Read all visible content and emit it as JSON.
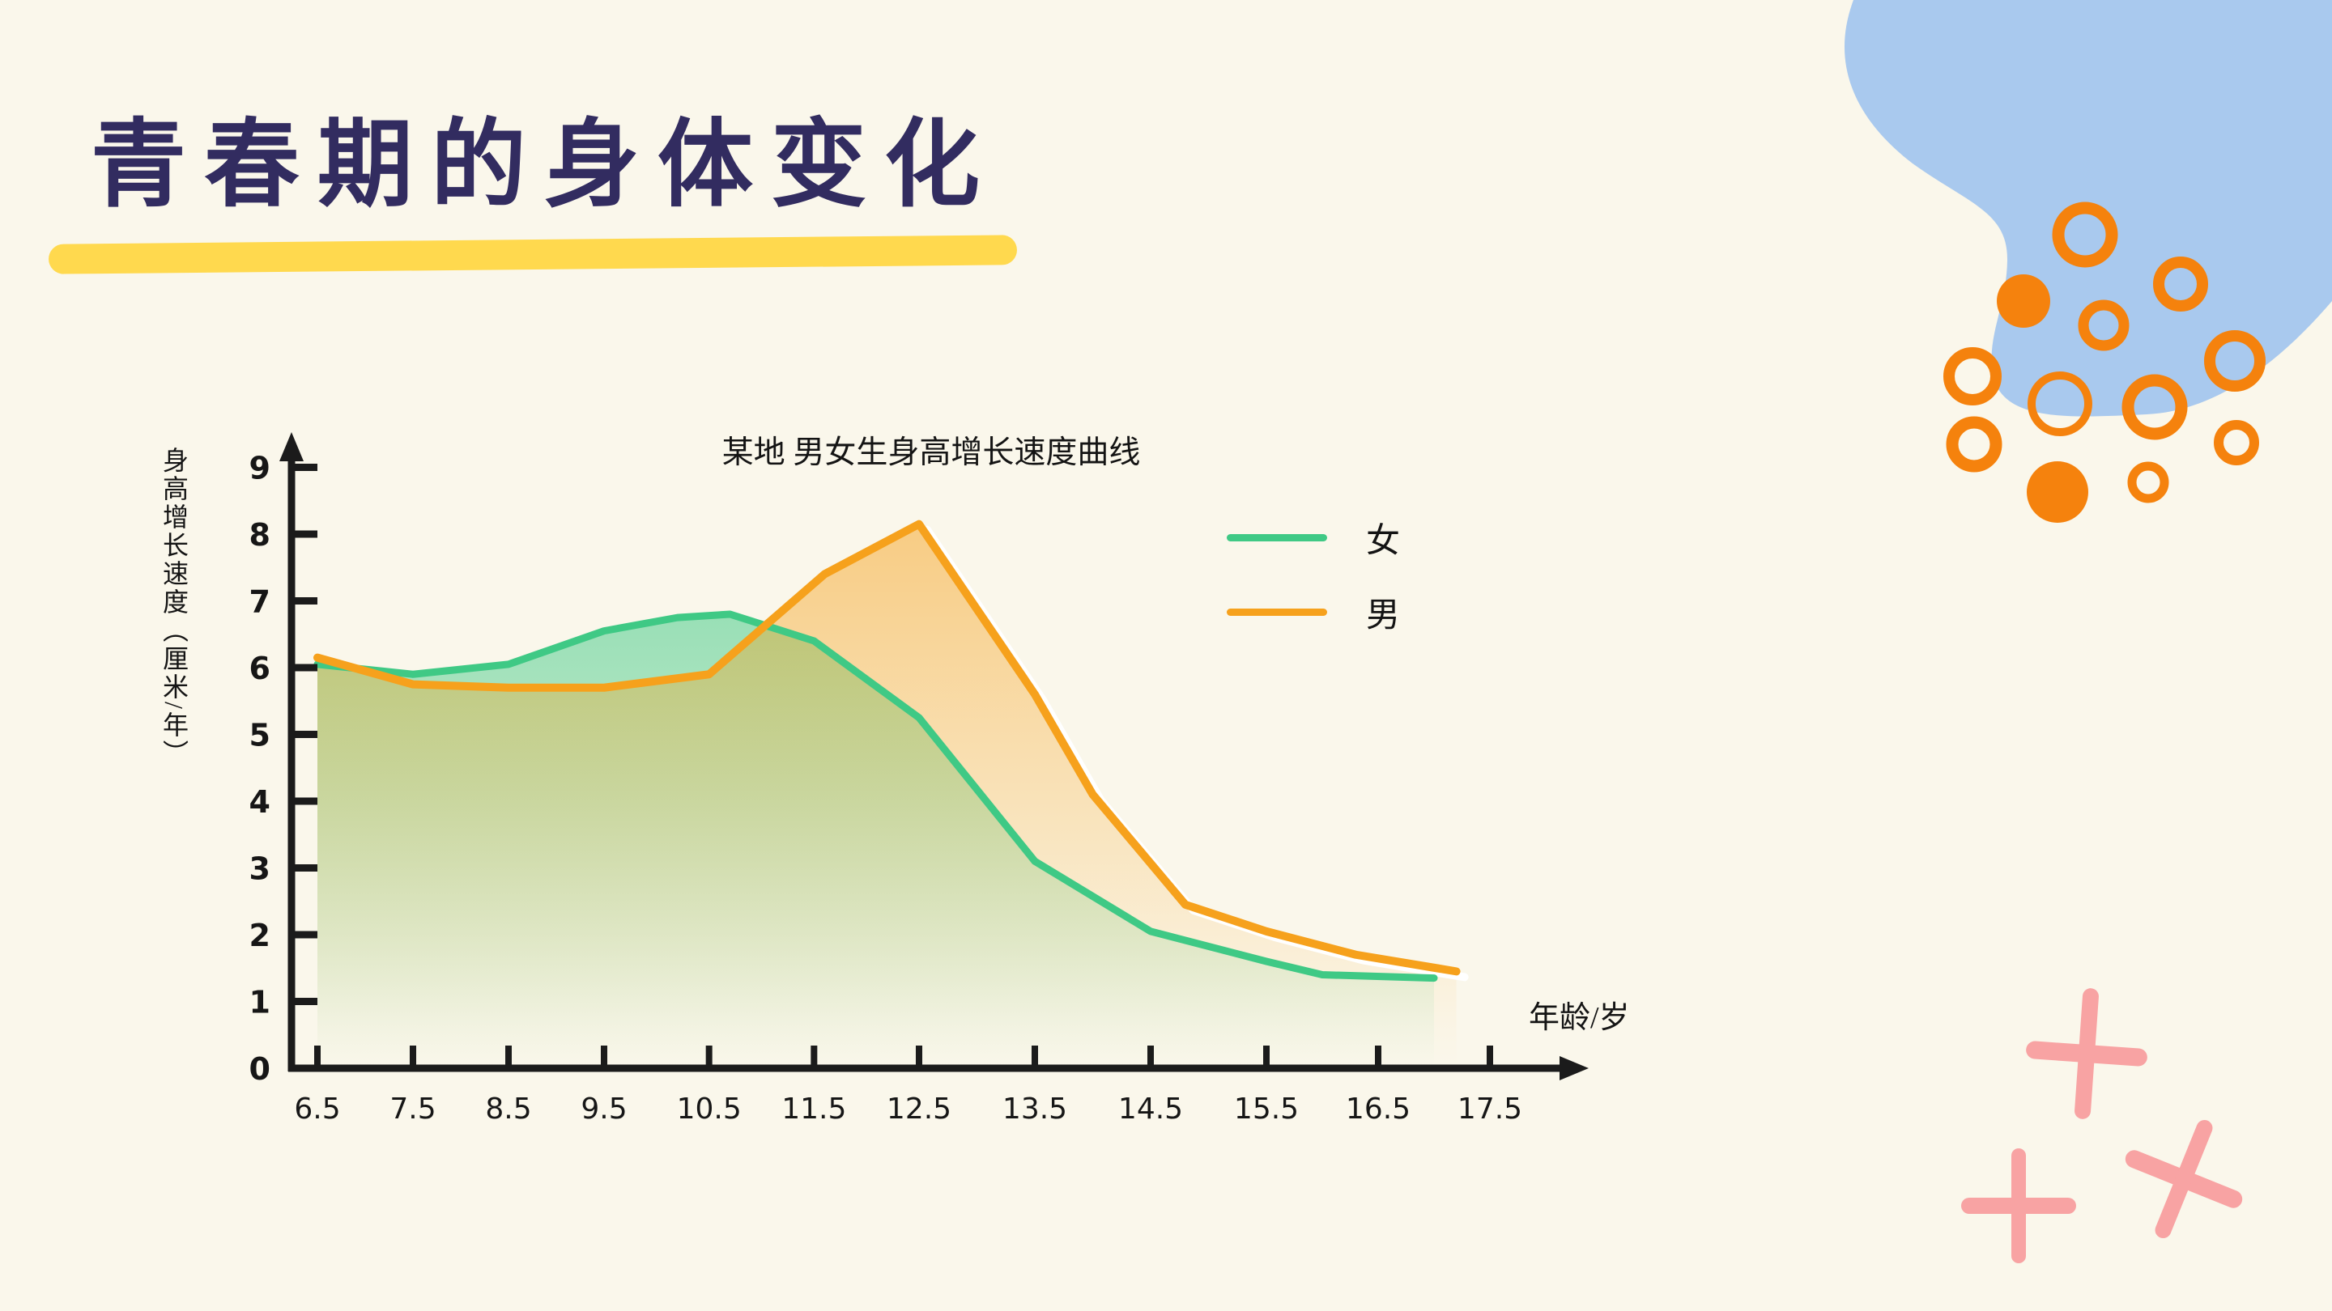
{
  "slide": {
    "background": "#FAF7EB"
  },
  "title": {
    "text": "青春期的身体变化",
    "color": "#322C60",
    "underline_color": "#FFD94E"
  },
  "chart": {
    "title": "某地 男女生身高增长速度曲线",
    "x_axis_label": "年龄/岁",
    "y_axis_label": "身高增长速度（厘米/年）",
    "axis_color": "#1B1B1B"
  },
  "chart_data": {
    "type": "line",
    "title": "某地 男女生身高增长速度曲线",
    "xlabel": "年龄/岁",
    "ylabel": "身高增长速度（厘米/年）",
    "x_ticks": [
      6.5,
      7.5,
      8.5,
      9.5,
      10.5,
      11.5,
      12.5,
      13.5,
      14.5,
      15.5,
      16.5,
      17.5
    ],
    "y_ticks": [
      0,
      1,
      2,
      3,
      4,
      5,
      6,
      7,
      8,
      9
    ],
    "xlim": [
      6.5,
      18.5
    ],
    "ylim": [
      0,
      9.5
    ],
    "grid": false,
    "legend_position": "upper right",
    "series": [
      {
        "name": "女",
        "color": "#3FC985",
        "x": [
          6.5,
          7.5,
          8.5,
          9.5,
          10.2,
          10.7,
          11.5,
          12.5,
          13.5,
          14.5,
          15.5,
          16.0,
          17.0
        ],
        "y": [
          6.05,
          5.9,
          6.05,
          6.55,
          6.75,
          6.8,
          6.4,
          5.25,
          3.1,
          2.05,
          1.6,
          1.4,
          1.35
        ]
      },
      {
        "name": "男",
        "color": "#F6A11C",
        "x": [
          6.5,
          7.5,
          8.5,
          9.5,
          10.5,
          11.6,
          12.5,
          13.5,
          14.0,
          14.8,
          15.5,
          16.3,
          17.2
        ],
        "y": [
          6.15,
          5.75,
          5.7,
          5.7,
          5.9,
          7.4,
          8.15,
          5.6,
          4.1,
          2.45,
          2.05,
          1.7,
          1.45
        ]
      }
    ]
  },
  "decorations": {
    "blob_color": "#A9C9EE",
    "dot_color": "#F5820D",
    "cross_color": "#F8A3A3"
  }
}
